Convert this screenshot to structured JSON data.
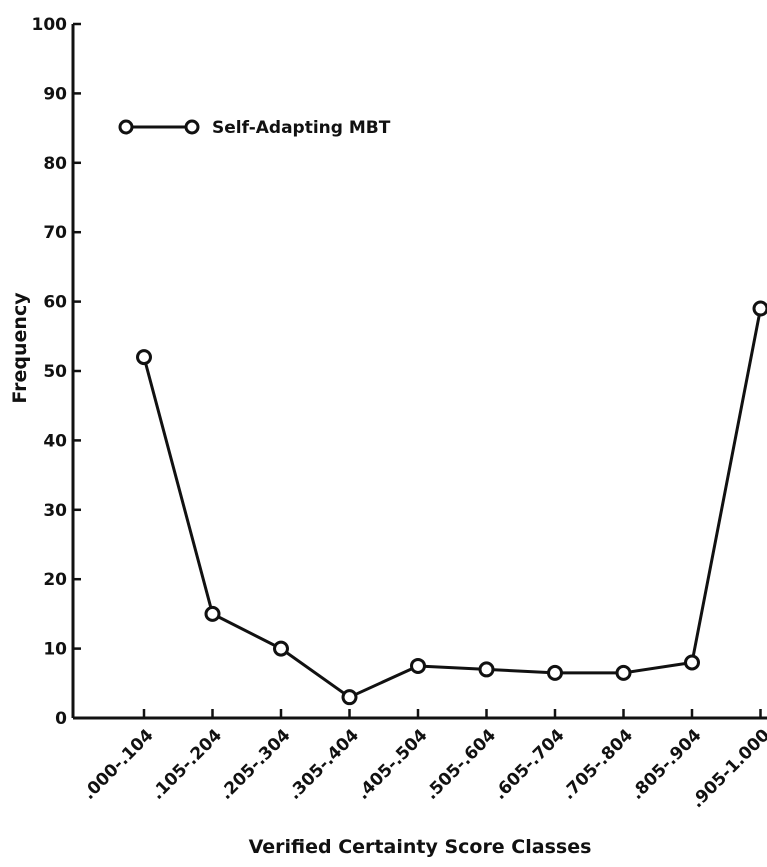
{
  "chart_data": {
    "type": "line",
    "title": "",
    "xlabel": "Verified Certainty Score Classes",
    "ylabel": "Frequency",
    "ylim": [
      0,
      100
    ],
    "yticks": [
      0,
      10,
      20,
      30,
      40,
      50,
      60,
      70,
      80,
      90,
      100
    ],
    "ytick_labels": [
      "0",
      "10",
      "20",
      "30",
      "40",
      "50",
      "60",
      "70",
      "80",
      "90",
      "100"
    ],
    "categories": [
      ".000-.104",
      ".105-.204",
      ".205-.304",
      ".305-.404",
      ".405-.504",
      ".505-.604",
      ".605-.704",
      ".705-.804",
      ".805-.904",
      ".905-1.000"
    ],
    "series": [
      {
        "name": "Self-Adapting MBT",
        "values": [
          52,
          15,
          10,
          3,
          7.5,
          7,
          6.5,
          6.5,
          8,
          59
        ]
      }
    ],
    "grid": false,
    "legend": "top-left",
    "colors": {
      "line": "#111111",
      "marker_fill": "#ffffff",
      "axis": "#111111"
    }
  }
}
